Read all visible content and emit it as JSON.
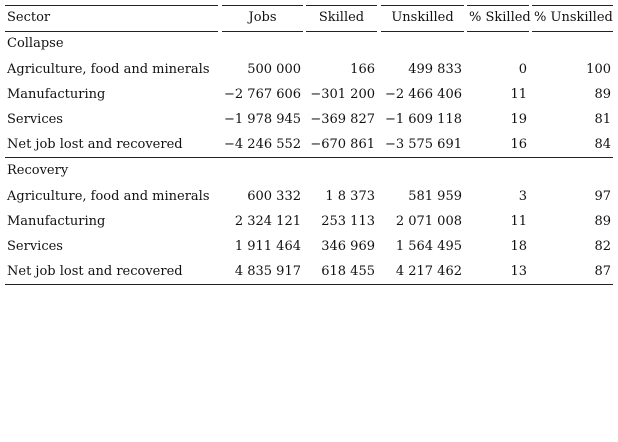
{
  "table": {
    "header": [
      "Sector",
      "Jobs",
      "Skilled",
      "Unskilled",
      "% Skilled",
      "% Unskilled"
    ],
    "sections": [
      {
        "title": "Collapse",
        "rows": [
          [
            "Agriculture, food and minerals",
            "500 000",
            "166",
            "499 833",
            "0",
            "100"
          ],
          [
            "Manufacturing",
            "−2 767 606",
            "−301 200",
            "−2 466 406",
            "11",
            "89"
          ],
          [
            "Services",
            "−1 978 945",
            "−369 827",
            "−1 609 118",
            "19",
            "81"
          ],
          [
            "Net job lost and recovered",
            "−4 246 552",
            "−670 861",
            "−3 575 691",
            "16",
            "84"
          ]
        ]
      },
      {
        "title": "Recovery",
        "rows": [
          [
            "Agriculture, food and minerals",
            "600 332",
            "1 8 373",
            "581 959",
            "3",
            "97"
          ],
          [
            "Manufacturing",
            "2 324 121",
            "253 113",
            "2 071 008",
            "11",
            "89"
          ],
          [
            "Services",
            "1 911 464",
            "346 969",
            "1 564 495",
            "18",
            "82"
          ],
          [
            "Net job lost and recovered",
            "4 835 917",
            "618 455",
            "4 217 462",
            "13",
            "87"
          ]
        ]
      }
    ]
  }
}
